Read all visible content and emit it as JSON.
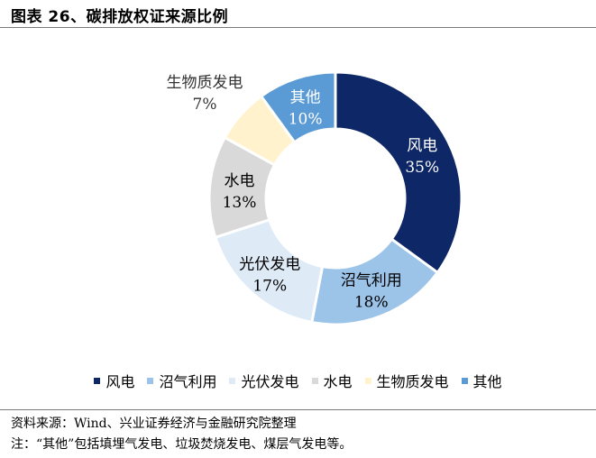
{
  "title": "图表 26、碳排放权证来源比例",
  "source": "资料来源：Wind、兴业证券经济与金融研究院整理",
  "note": "注：“其他”包括填埋气发电、垃圾焚烧发电、煤层气发电等。",
  "chart_data": {
    "type": "pie",
    "donut": true,
    "legend_position": "bottom",
    "slices": [
      {
        "name": "风电",
        "value": 35,
        "label": "35%",
        "color": "#0e2766",
        "text_color": "#ffffff"
      },
      {
        "name": "沼气利用",
        "value": 18,
        "label": "18%",
        "color": "#9cc3e8",
        "text_color": "#000000"
      },
      {
        "name": "光伏发电",
        "value": 17,
        "label": "17%",
        "color": "#deebf7",
        "text_color": "#000000"
      },
      {
        "name": "水电",
        "value": 13,
        "label": "13%",
        "color": "#d9d9d9",
        "text_color": "#000000"
      },
      {
        "name": "生物质发电",
        "value": 7,
        "label": "7%",
        "color": "#fff2cc",
        "text_color": "#000000"
      },
      {
        "name": "其他",
        "value": 10,
        "label": "10%",
        "color": "#5b9bd5",
        "text_color": "#ffffff"
      }
    ]
  }
}
